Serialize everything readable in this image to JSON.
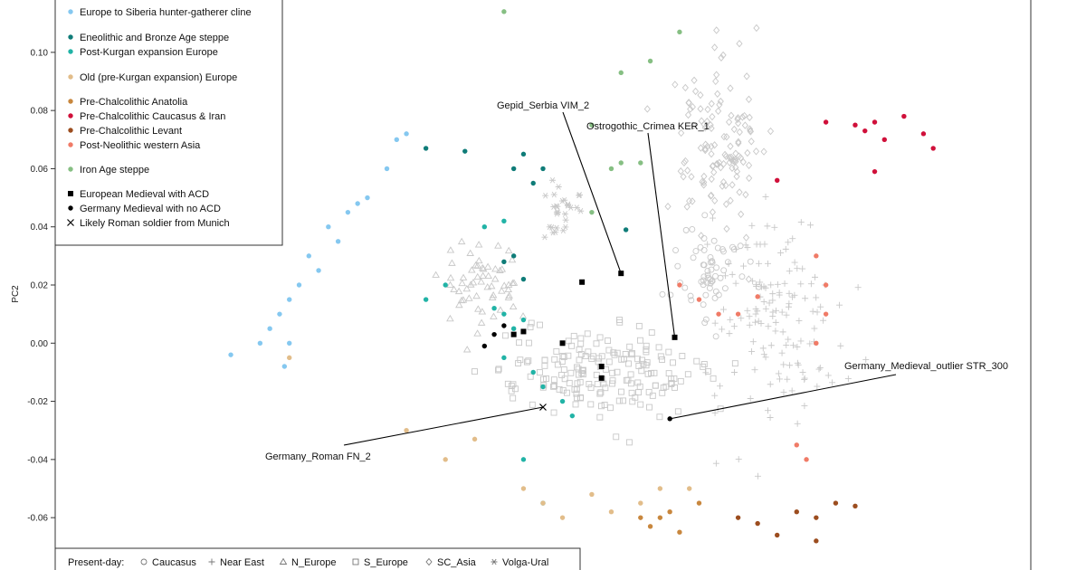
{
  "chart_data": {
    "type": "scatter",
    "title": "",
    "xlabel": "",
    "ylabel": "PC2",
    "ylim": [
      -0.078,
      0.118
    ],
    "y_ticks": [
      "0.10",
      "0.08",
      "0.06",
      "0.04",
      "0.02",
      "0.00",
      "-0.02",
      "-0.04",
      "-0.06"
    ],
    "y_tick_values": [
      0.1,
      0.08,
      0.06,
      0.04,
      0.02,
      0.0,
      -0.02,
      -0.04,
      -0.06
    ],
    "x_range_note": "no x ticks visible",
    "xlim": [
      0,
      1
    ],
    "legend": [
      {
        "label": "Europe to Siberia hunter-gatherer cline",
        "marker": "dot",
        "color": "#85c8f0"
      },
      {
        "label": "Eneolithic and Bronze Age steppe",
        "marker": "dot",
        "color": "#0f7c78"
      },
      {
        "label": "Post-Kurgan expansion Europe",
        "marker": "dot",
        "color": "#21b3a6"
      },
      {
        "label": "Old (pre-Kurgan expansion) Europe",
        "marker": "dot",
        "color": "#e2bd8a"
      },
      {
        "label": "Pre-Chalcolithic Anatolia",
        "marker": "dot",
        "color": "#c8873e"
      },
      {
        "label": "Pre-Chalcolithic Caucasus & Iran",
        "marker": "dot",
        "color": "#d0103a"
      },
      {
        "label": "Pre-Chalcolithic Levant",
        "marker": "dot",
        "color": "#9c4d1f"
      },
      {
        "label": "Post-Neolithic western Asia",
        "marker": "dot",
        "color": "#f07b67"
      },
      {
        "label": "Iron Age steppe",
        "marker": "dot",
        "color": "#86bf83"
      },
      {
        "label": "European Medieval with ACD",
        "marker": "square",
        "color": "#000000"
      },
      {
        "label": "Germany Medieval with no ACD",
        "marker": "dot",
        "color": "#000000"
      },
      {
        "label": "Likely Roman soldier from Munich",
        "marker": "cross",
        "color": "#000000"
      }
    ],
    "present_day": {
      "label": "Present-day:",
      "items": [
        {
          "label": "Caucasus",
          "marker": "circle"
        },
        {
          "label": "Near East",
          "marker": "plus"
        },
        {
          "label": "N_Europe",
          "marker": "triangle"
        },
        {
          "label": "S_Europe",
          "marker": "square-open"
        },
        {
          "label": "SC_Asia",
          "marker": "diamond"
        },
        {
          "label": "Volga-Ural",
          "marker": "asterisk"
        }
      ]
    },
    "annotations": [
      {
        "label": "Gepid_Serbia VIM_2",
        "point": [
          0.58,
          0.024
        ]
      },
      {
        "label": "Ostrogothic_Crimea KER_1",
        "point": [
          0.635,
          0.002
        ]
      },
      {
        "label": "Germany_Medieval_outlier STR_300",
        "point": [
          0.63,
          -0.026
        ]
      },
      {
        "label": "Germany_Roman FN_2",
        "point": [
          0.5,
          -0.022
        ]
      }
    ],
    "clusters": [
      {
        "group": "Europe to Siberia hunter-gatherer cline",
        "points": [
          [
            0.18,
            -0.004
          ],
          [
            0.21,
            0.0
          ],
          [
            0.23,
            0.01
          ],
          [
            0.25,
            0.02
          ],
          [
            0.26,
            0.03
          ],
          [
            0.28,
            0.04
          ],
          [
            0.3,
            0.045
          ],
          [
            0.32,
            0.05
          ],
          [
            0.34,
            0.06
          ],
          [
            0.35,
            0.07
          ],
          [
            0.36,
            0.072
          ],
          [
            0.22,
            0.005
          ],
          [
            0.24,
            0.015
          ],
          [
            0.27,
            0.025
          ],
          [
            0.29,
            0.035
          ],
          [
            0.31,
            0.048
          ],
          [
            0.24,
            0.0
          ],
          [
            0.235,
            -0.008
          ]
        ]
      },
      {
        "group": "Eneolithic and Bronze Age steppe",
        "points": [
          [
            0.47,
            0.06
          ],
          [
            0.48,
            0.065
          ],
          [
            0.49,
            0.055
          ],
          [
            0.5,
            0.06
          ],
          [
            0.46,
            0.028
          ],
          [
            0.47,
            0.03
          ],
          [
            0.48,
            0.022
          ],
          [
            0.38,
            0.067
          ],
          [
            0.42,
            0.066
          ],
          [
            0.585,
            0.039
          ]
        ]
      },
      {
        "group": "Post-Kurgan expansion Europe",
        "points": [
          [
            0.45,
            0.012
          ],
          [
            0.46,
            0.01
          ],
          [
            0.47,
            0.005
          ],
          [
            0.48,
            0.008
          ],
          [
            0.46,
            -0.005
          ],
          [
            0.49,
            -0.01
          ],
          [
            0.5,
            -0.015
          ],
          [
            0.52,
            -0.02
          ],
          [
            0.53,
            -0.025
          ],
          [
            0.48,
            -0.04
          ],
          [
            0.5,
            -0.055
          ],
          [
            0.4,
            0.02
          ],
          [
            0.38,
            0.015
          ],
          [
            0.44,
            0.04
          ],
          [
            0.46,
            0.042
          ]
        ]
      },
      {
        "group": "Old (pre-Kurgan expansion) Europe",
        "points": [
          [
            0.48,
            -0.05
          ],
          [
            0.5,
            -0.055
          ],
          [
            0.52,
            -0.06
          ],
          [
            0.55,
            -0.052
          ],
          [
            0.57,
            -0.058
          ],
          [
            0.6,
            -0.055
          ],
          [
            0.62,
            -0.05
          ],
          [
            0.65,
            -0.05
          ],
          [
            0.36,
            -0.03
          ],
          [
            0.4,
            -0.04
          ],
          [
            0.43,
            -0.033
          ],
          [
            0.24,
            -0.005
          ]
        ]
      },
      {
        "group": "Pre-Chalcolithic Anatolia",
        "points": [
          [
            0.6,
            -0.06
          ],
          [
            0.62,
            -0.06
          ],
          [
            0.63,
            -0.058
          ],
          [
            0.64,
            -0.065
          ],
          [
            0.61,
            -0.063
          ],
          [
            0.66,
            -0.055
          ]
        ]
      },
      {
        "group": "Pre-Chalcolithic Caucasus & Iran",
        "points": [
          [
            0.79,
            0.076
          ],
          [
            0.82,
            0.075
          ],
          [
            0.83,
            0.073
          ],
          [
            0.84,
            0.076
          ],
          [
            0.85,
            0.07
          ],
          [
            0.87,
            0.078
          ],
          [
            0.89,
            0.072
          ],
          [
            0.9,
            0.067
          ],
          [
            0.84,
            0.059
          ],
          [
            0.74,
            0.056
          ]
        ]
      },
      {
        "group": "Pre-Chalcolithic Levant",
        "points": [
          [
            0.7,
            -0.06
          ],
          [
            0.72,
            -0.062
          ],
          [
            0.74,
            -0.066
          ],
          [
            0.76,
            -0.058
          ],
          [
            0.78,
            -0.06
          ],
          [
            0.8,
            -0.055
          ],
          [
            0.82,
            -0.056
          ],
          [
            0.78,
            -0.068
          ]
        ]
      },
      {
        "group": "Post-Neolithic western Asia",
        "points": [
          [
            0.64,
            0.02
          ],
          [
            0.66,
            0.015
          ],
          [
            0.68,
            0.01
          ],
          [
            0.7,
            0.01
          ],
          [
            0.72,
            0.016
          ],
          [
            0.78,
            0.03
          ],
          [
            0.79,
            0.02
          ],
          [
            0.79,
            0.01
          ],
          [
            0.78,
            0.0
          ],
          [
            0.76,
            -0.035
          ],
          [
            0.77,
            -0.04
          ]
        ]
      },
      {
        "group": "Iron Age steppe",
        "points": [
          [
            0.46,
            0.114
          ],
          [
            0.58,
            0.093
          ],
          [
            0.61,
            0.097
          ],
          [
            0.64,
            0.107
          ],
          [
            0.55,
            0.075
          ],
          [
            0.55,
            0.045
          ],
          [
            0.57,
            0.06
          ],
          [
            0.58,
            0.062
          ],
          [
            0.6,
            0.062
          ]
        ]
      },
      {
        "group": "European Medieval with ACD",
        "points": [
          [
            0.54,
            0.021
          ],
          [
            0.58,
            0.024
          ],
          [
            0.52,
            0.0
          ],
          [
            0.56,
            -0.008
          ],
          [
            0.56,
            -0.012
          ],
          [
            0.635,
            0.002
          ],
          [
            0.47,
            0.003
          ],
          [
            0.48,
            0.004
          ]
        ]
      },
      {
        "group": "Germany Medieval with no ACD",
        "points": [
          [
            0.44,
            -0.001
          ],
          [
            0.45,
            0.003
          ],
          [
            0.46,
            0.006
          ],
          [
            0.63,
            -0.026
          ]
        ]
      },
      {
        "group": "Likely Roman soldier from Munich",
        "points": [
          [
            0.5,
            -0.022
          ]
        ]
      }
    ],
    "background_groups": [
      {
        "group": "Caucasus",
        "marker": "circle",
        "center": [
          0.67,
          0.025
        ],
        "spread": [
          0.03,
          0.015
        ],
        "count": 60
      },
      {
        "group": "Near East",
        "marker": "plus",
        "center": [
          0.74,
          0.01
        ],
        "spread": [
          0.055,
          0.03
        ],
        "count": 140
      },
      {
        "group": "N_Europe",
        "marker": "triangle",
        "center": [
          0.44,
          0.02
        ],
        "spread": [
          0.035,
          0.012
        ],
        "count": 60
      },
      {
        "group": "S_Europe",
        "marker": "square-open",
        "center": [
          0.55,
          -0.01
        ],
        "spread": [
          0.09,
          0.012
        ],
        "count": 180
      },
      {
        "group": "SC_Asia",
        "marker": "diamond",
        "center": [
          0.68,
          0.07
        ],
        "spread": [
          0.035,
          0.025
        ],
        "count": 130
      },
      {
        "group": "Volga-Ural",
        "marker": "asterisk",
        "center": [
          0.52,
          0.046
        ],
        "spread": [
          0.015,
          0.008
        ],
        "count": 30
      }
    ]
  },
  "colors": {
    "background_marker": "#c8c8c8",
    "axis": "#333333",
    "leader": "#000000"
  }
}
